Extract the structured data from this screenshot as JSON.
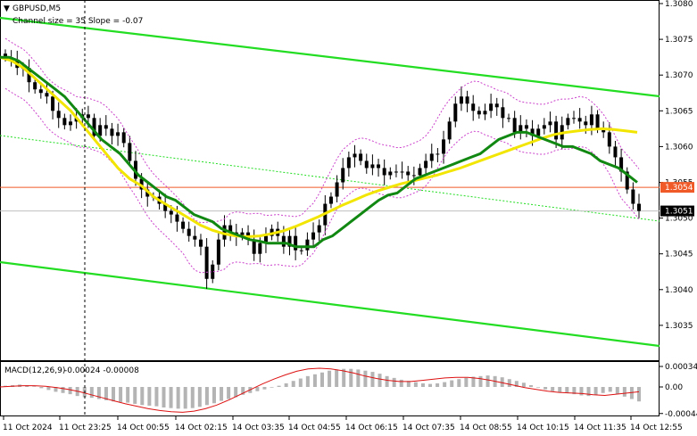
{
  "chart_data": [
    {
      "type": "candlestick",
      "title": "GBPUSD,M5",
      "subtitle": "Channel size = 35 Slope = -0.07",
      "ylim": [
        1.30305,
        1.3081
      ],
      "y_ticks": [
        "1.3080",
        "1.3075",
        "1.3070",
        "1.3065",
        "1.3060",
        "1.3055",
        "1.3050",
        "1.3045",
        "1.3040",
        "1.3035"
      ],
      "y_tick_values": [
        1.308,
        1.3075,
        1.307,
        1.3065,
        1.306,
        1.3055,
        1.305,
        1.3045,
        1.304,
        1.3035
      ],
      "price_labels": {
        "horizontal_line": {
          "text": "1.3054",
          "value": 1.30543,
          "color": "#f05a28"
        },
        "current": {
          "text": "1.3051",
          "value": 1.3051
        }
      },
      "colors": {
        "channel": "#22dd22",
        "ma_fast": "#118811",
        "ma_slow": "#f2e600",
        "bollinger": "#cc44cc",
        "candles": "#000000",
        "hline": "#f05a28"
      },
      "close": [
        1.30725,
        1.3072,
        1.3071,
        1.3071,
        1.3069,
        1.3068,
        1.30675,
        1.3067,
        1.3065,
        1.3064,
        1.3063,
        1.30635,
        1.3064,
        1.30645,
        1.3064,
        1.30615,
        1.3063,
        1.30625,
        1.30615,
        1.3062,
        1.30605,
        1.3058,
        1.30555,
        1.3054,
        1.3053,
        1.3053,
        1.3052,
        1.3051,
        1.30505,
        1.30495,
        1.30485,
        1.30475,
        1.3047,
        1.3046,
        1.30415,
        1.30435,
        1.3047,
        1.3049,
        1.3048,
        1.30475,
        1.3048,
        1.3047,
        1.3045,
        1.30465,
        1.30475,
        1.30485,
        1.30475,
        1.3046,
        1.30475,
        1.30455,
        1.30455,
        1.3047,
        1.3048,
        1.3049,
        1.3052,
        1.3053,
        1.3055,
        1.3057,
        1.30585,
        1.3059,
        1.3058,
        1.3057,
        1.30575,
        1.3057,
        1.3056,
        1.30565,
        1.30565,
        1.30565,
        1.3056,
        1.3056,
        1.3057,
        1.3058,
        1.3059,
        1.3059,
        1.3061,
        1.30635,
        1.3066,
        1.3067,
        1.3066,
        1.3065,
        1.30645,
        1.3065,
        1.3066,
        1.30655,
        1.3064,
        1.3064,
        1.3062,
        1.3063,
        1.30625,
        1.30615,
        1.30625,
        1.3063,
        1.30635,
        1.3061,
        1.3063,
        1.3064,
        1.3064,
        1.30635,
        1.3063,
        1.30645,
        1.30625,
        1.3062,
        1.306,
        1.30585,
        1.30565,
        1.3054,
        1.3052,
        1.3051
      ],
      "ma_fast": [
        1.30725,
        1.30725,
        1.3072,
        1.3071,
        1.307,
        1.3069,
        1.3068,
        1.3067,
        1.30655,
        1.3064,
        1.30625,
        1.3061,
        1.306,
        1.3059,
        1.30575,
        1.3056,
        1.3055,
        1.3054,
        1.3053,
        1.30525,
        1.30515,
        1.30505,
        1.305,
        1.30495,
        1.30485,
        1.3048,
        1.30475,
        1.3047,
        1.30468,
        1.30465,
        1.30465,
        1.30465,
        1.3046,
        1.3046,
        1.3046,
        1.3047,
        1.30475,
        1.30485,
        1.30495,
        1.30505,
        1.30515,
        1.30525,
        1.30532,
        1.30535,
        1.30545,
        1.30555,
        1.3056,
        1.30565,
        1.3057,
        1.30575,
        1.3058,
        1.30585,
        1.3059,
        1.306,
        1.3061,
        1.30615,
        1.3062,
        1.3062,
        1.30615,
        1.3061,
        1.30605,
        1.306,
        1.306,
        1.30595,
        1.3059,
        1.3058,
        1.30575,
        1.3057,
        1.3056,
        1.3055
      ],
      "ma_slow": [
        1.30725,
        1.3072,
        1.3071,
        1.30695,
        1.3068,
        1.30665,
        1.3065,
        1.3063,
        1.3061,
        1.3059,
        1.3057,
        1.30555,
        1.30545,
        1.3053,
        1.3052,
        1.3051,
        1.305,
        1.3049,
        1.30483,
        1.30478,
        1.30475,
        1.30474,
        1.30475,
        1.30478,
        1.30482,
        1.30488,
        1.30495,
        1.30502,
        1.3051,
        1.30518,
        1.30525,
        1.30532,
        1.30538,
        1.30543,
        1.30548,
        1.30552,
        1.30556,
        1.3056,
        1.30565,
        1.3057,
        1.30576,
        1.30582,
        1.30588,
        1.30594,
        1.306,
        1.30606,
        1.30612,
        1.30617,
        1.3062,
        1.30622,
        1.30624,
        1.30625,
        1.30624,
        1.30622,
        1.3062
      ]
    },
    {
      "type": "macd",
      "title": "MACD(12,26,9)",
      "values_label": "-0.00024 -0.00008",
      "y_ticks": [
        "0.00034",
        "0.00",
        "-0.00044"
      ],
      "ylim": [
        -0.0005,
        0.0004
      ],
      "histogram": [
        2e-05,
        3e-05,
        4e-05,
        3e-05,
        1e-05,
        -2e-05,
        -5e-05,
        -8e-05,
        -0.0001,
        -0.00012,
        -0.00015,
        -0.00017,
        -0.00018,
        -0.0002,
        -0.00022,
        -0.00024,
        -0.00025,
        -0.00026,
        -0.00028,
        -0.0003,
        -0.00031,
        -0.00032,
        -0.00034,
        -0.00035,
        -0.00036,
        -0.00036,
        -0.00035,
        -0.00033,
        -0.0003,
        -0.00027,
        -0.00023,
        -0.0002,
        -0.00017,
        -0.00013,
        -0.0001,
        -7e-05,
        -4e-05,
        -1e-05,
        2e-05,
        6e-05,
        0.0001,
        0.00014,
        0.00018,
        0.00021,
        0.00024,
        0.00027,
        0.00029,
        0.0003,
        0.0003,
        0.00029,
        0.00027,
        0.00025,
        0.00022,
        0.00018,
        0.00015,
        0.00012,
        0.0001,
        8e-05,
        6e-05,
        5e-05,
        6e-05,
        8e-05,
        0.00011,
        0.00013,
        0.00015,
        0.00017,
        0.00018,
        0.00019,
        0.00018,
        0.00016,
        0.00013,
        0.0001,
        7e-05,
        3e-05,
        -1e-05,
        -4e-05,
        -7e-05,
        -9e-05,
        -0.0001,
        -0.00012,
        -0.00014,
        -0.00015,
        -0.00013,
        -0.0001,
        -8e-05,
        -0.00012,
        -0.00016,
        -0.0002,
        -0.00024
      ],
      "signal": [
        0.0,
        1e-05,
        2e-05,
        2e-05,
        1e-05,
        -1e-05,
        -4e-05,
        -8e-05,
        -0.00013,
        -0.00018,
        -0.00023,
        -0.00028,
        -0.00032,
        -0.00036,
        -0.00039,
        -0.00041,
        -0.00042,
        -0.0004,
        -0.00036,
        -0.0003,
        -0.00022,
        -0.00013,
        -4e-05,
        5e-05,
        0.00013,
        0.0002,
        0.00026,
        0.0003,
        0.00031,
        0.0003,
        0.00027,
        0.00023,
        0.00018,
        0.00014,
        0.00011,
        9e-05,
        9e-05,
        0.00011,
        0.00013,
        0.00015,
        0.00016,
        0.00016,
        0.00014,
        0.00011,
        7e-05,
        3e-05,
        -1e-05,
        -4e-05,
        -7e-05,
        -9e-05,
        -0.0001,
        -0.00011,
        -0.00013,
        -0.00014,
        -0.00012,
        -0.0001,
        -8e-05
      ]
    }
  ],
  "x_axis": {
    "labels": [
      "11 Oct 2024",
      "11 Oct 23:25",
      "14 Oct 00:55",
      "14 Oct 02:15",
      "14 Oct 03:35",
      "14 Oct 04:55",
      "14 Oct 06:15",
      "14 Oct 07:35",
      "14 Oct 08:55",
      "14 Oct 10:15",
      "14 Oct 11:35",
      "14 Oct 12:55"
    ]
  }
}
